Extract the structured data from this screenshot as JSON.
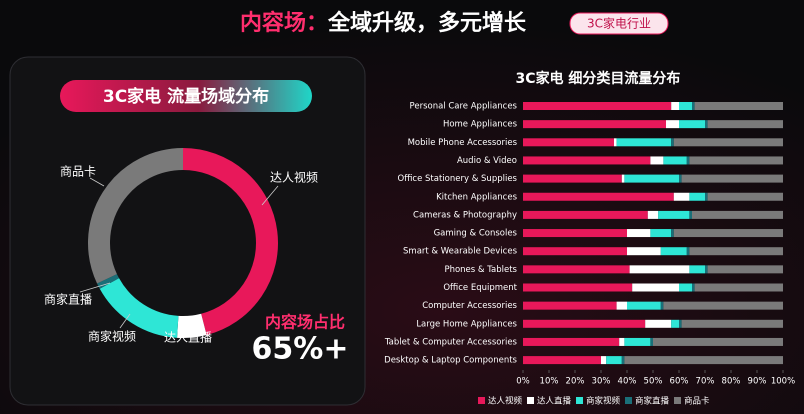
{
  "header": {
    "title_highlight": "内容场：",
    "title": "全域升级，多元增长",
    "tag": "3C家电行业"
  },
  "chart_data": [
    {
      "type": "pie",
      "title": "3C家电 流量场域分布",
      "categories": [
        "达人视频",
        "达人直播",
        "商家视频",
        "商家直播",
        "商品卡"
      ],
      "values": [
        46,
        5,
        16,
        1,
        32
      ],
      "colors": [
        "#e8185a",
        "#ffffff",
        "#2ee6d6",
        "#1a6f78",
        "#7a7a7a"
      ],
      "annotation": {
        "label": "内容场占比",
        "value_text": "65%+"
      }
    },
    {
      "type": "bar",
      "orientation": "horizontal",
      "stacked": true,
      "title": "3C家电 细分类目流量分布",
      "categories": [
        "Personal Care Appliances",
        "Home Appliances",
        "Mobile Phone Accessories",
        "Audio & Video",
        "Office Stationery & Supplies",
        "Kitchen Appliances",
        "Cameras & Photography",
        "Gaming & Consoles",
        "Smart & Wearable Devices",
        "Phones & Tablets",
        "Office Equipment",
        "Computer Accessories",
        "Large Home Appliances",
        "Tablet & Computer Accessories",
        "Desktop & Laptop Components"
      ],
      "series": [
        {
          "name": "达人视频",
          "color": "#e8185a",
          "values": [
            57,
            55,
            35,
            49,
            38,
            58,
            48,
            40,
            40,
            41,
            42,
            36,
            47,
            37,
            30
          ]
        },
        {
          "name": "达人直播",
          "color": "#ffffff",
          "values": [
            3,
            5,
            1,
            5,
            1,
            6,
            4,
            9,
            13,
            23,
            18,
            4,
            10,
            2,
            2
          ]
        },
        {
          "name": "商家视频",
          "color": "#2ee6d6",
          "values": [
            5,
            10,
            21,
            9,
            21,
            6,
            12,
            8,
            10,
            6,
            5,
            13,
            3,
            10,
            6
          ]
        },
        {
          "name": "商家直播",
          "color": "#1a6f78",
          "values": [
            1,
            1,
            1,
            1,
            1,
            1,
            1,
            1,
            1,
            1,
            1,
            1,
            1,
            1,
            1
          ]
        },
        {
          "name": "商品卡",
          "color": "#7a7a7a",
          "values": [
            34,
            29,
            42,
            36,
            39,
            29,
            35,
            42,
            36,
            29,
            34,
            46,
            39,
            50,
            61
          ]
        }
      ],
      "xlim": [
        0,
        100
      ],
      "xticks": [
        {
          "value": 0,
          "label": "0%"
        },
        {
          "value": 10,
          "label": "10%"
        },
        {
          "value": 20,
          "label": "20%"
        },
        {
          "value": 30,
          "label": "30%"
        },
        {
          "value": 40,
          "label": "40%"
        },
        {
          "value": 50,
          "label": "50%"
        },
        {
          "value": 60,
          "label": "60%"
        },
        {
          "value": 70,
          "label": "70%"
        },
        {
          "value": 80,
          "label": "80%"
        },
        {
          "value": 90,
          "label": "90%"
        },
        {
          "value": 100,
          "label": "100%"
        }
      ],
      "legend": "bottom"
    }
  ]
}
